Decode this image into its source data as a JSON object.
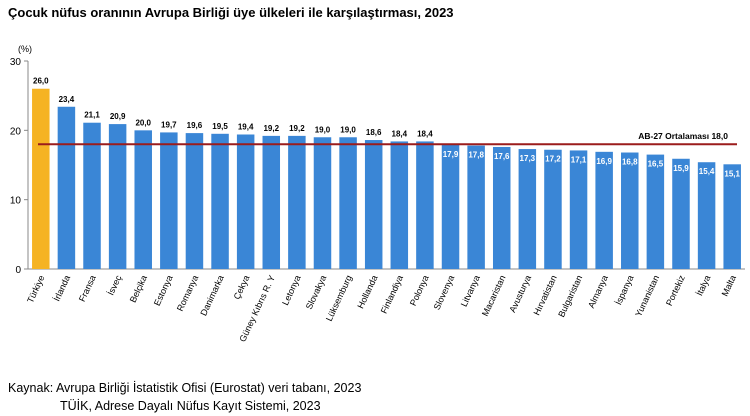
{
  "title": "Çocuk nüfus oranının Avrupa Birliği üye ülkeleri ile karşılaştırması, 2023",
  "source": {
    "line1": "Kaynak: Avrupa Birliği İstatistik Ofisi (Eurostat) veri tabanı, 2023",
    "line2": "TÜİK, Adrese Dayalı Nüfus Kayıt Sistemi, 2023"
  },
  "chart_data": {
    "type": "bar",
    "unit_label": "(%)",
    "categories": [
      "Türkiye",
      "İrlanda",
      "Fransa",
      "İsveç",
      "Belçika",
      "Estonya",
      "Romanya",
      "Danimarka",
      "Çekya",
      "Güney Kıbrıs R. Y",
      "Letonya",
      "Slovakya",
      "Lüksemburg",
      "Hollanda",
      "Finlandiya",
      "Polonya",
      "Slovenya",
      "Litvanya",
      "Macaristan",
      "Avusturya",
      "Hırvatistan",
      "Bulgaristan",
      "Almanya",
      "İspanya",
      "Yunanistan",
      "Portekiz",
      "İtalya",
      "Malta"
    ],
    "values": [
      26.0,
      23.4,
      21.1,
      20.9,
      20.0,
      19.7,
      19.6,
      19.5,
      19.4,
      19.2,
      19.2,
      19.0,
      19.0,
      18.6,
      18.4,
      18.4,
      17.9,
      17.8,
      17.6,
      17.3,
      17.2,
      17.1,
      16.9,
      16.8,
      16.5,
      15.9,
      15.4,
      15.1
    ],
    "value_labels": [
      "26,0",
      "23,4",
      "21,1",
      "20,9",
      "20,0",
      "19,7",
      "19,6",
      "19,5",
      "19,4",
      "19,2",
      "19,2",
      "19,0",
      "19,0",
      "18,6",
      "18,4",
      "18,4",
      "17,9",
      "17,8",
      "17,6",
      "17,3",
      "17,2",
      "17,1",
      "16,9",
      "16,8",
      "16,5",
      "15,9",
      "15,4",
      "15,1"
    ],
    "y_ticks": [
      "0",
      "10",
      "20",
      "30"
    ],
    "ylim": [
      0,
      30
    ],
    "reference_line": {
      "label": "AB-27 Ortalaması 18,0",
      "value": 18.0,
      "color": "#9b1c1c"
    },
    "colors": {
      "highlight": "#f5b323",
      "bar": "#3a86d6",
      "axis": "#888888"
    },
    "highlight_index": 0
  }
}
